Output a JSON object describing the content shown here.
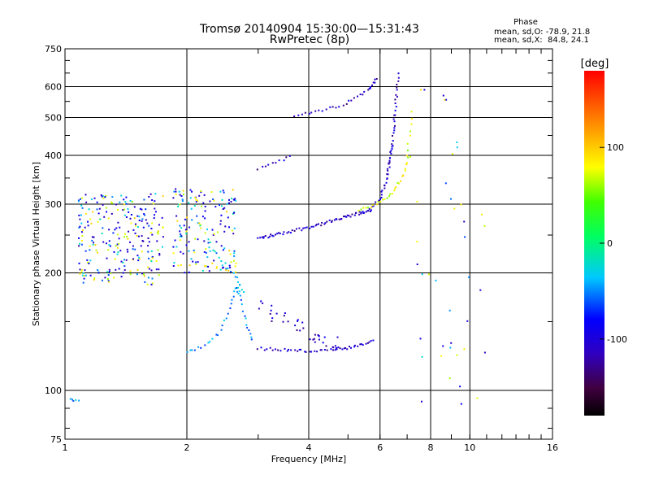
{
  "chart_data": {
    "type": "scatter",
    "title": "Tromsø 20140904 15:30:00—15:31:43",
    "subtitle": "RwPretec (8p)",
    "xlabel": "Frequency [MHz]",
    "ylabel": "Stationary phase Virtual Height [km]",
    "x_scale": "log",
    "y_scale": "log",
    "xlim": [
      1,
      16
    ],
    "ylim": [
      75,
      750
    ],
    "grid": true,
    "x_ticks": [
      {
        "v": 1,
        "label": "1"
      },
      {
        "v": 2,
        "label": "2"
      },
      {
        "v": 4,
        "label": "4"
      },
      {
        "v": 6,
        "label": "6"
      },
      {
        "v": 8,
        "label": "8"
      },
      {
        "v": 10,
        "label": "10"
      },
      {
        "v": 16,
        "label": "16"
      }
    ],
    "y_ticks": [
      {
        "v": 75,
        "label": "75"
      },
      {
        "v": 100,
        "label": "100"
      },
      {
        "v": 200,
        "label": "200"
      },
      {
        "v": 300,
        "label": "300"
      },
      {
        "v": 400,
        "label": "400"
      },
      {
        "v": 500,
        "label": "500"
      },
      {
        "v": 600,
        "label": "600"
      },
      {
        "v": 750,
        "label": "750"
      }
    ],
    "x_gridlines": [
      2,
      4,
      6,
      8,
      10
    ],
    "y_gridlines": [
      100,
      200,
      300,
      400,
      500,
      600
    ],
    "phase_stats": {
      "heading": "Phase",
      "line_o": "mean, sd,O: -78.9, 21.8",
      "line_x": "mean, sd,X:  84.8, 24.1"
    },
    "colorbar": {
      "label": "[deg]",
      "range": [
        -180,
        180
      ],
      "ticks": [
        {
          "v": 100,
          "label": "100"
        },
        {
          "v": 0,
          "label": "0"
        },
        {
          "v": -100,
          "label": "-100"
        }
      ]
    },
    "series": [
      {
        "phase_deg": -110,
        "traces": [
          {
            "xs": [
              3.0,
              3.4,
              4.0,
              4.6,
              5.2,
              5.7
            ],
            "ys": [
              245,
              252,
              262,
              272,
              282,
              290
            ],
            "n": 70
          },
          {
            "xs": [
              5.7,
              6.0,
              6.15,
              6.25,
              6.32
            ],
            "ys": [
              290,
              310,
              330,
              355,
              380
            ],
            "n": 22
          },
          {
            "xs": [
              6.3,
              6.45,
              6.55,
              6.65
            ],
            "ys": [
              380,
              430,
              520,
              650
            ],
            "n": 34
          },
          {
            "xs": [
              3.0,
              3.3,
              3.6
            ],
            "ys": [
              370,
              385,
              395
            ],
            "n": 10
          },
          {
            "xs": [
              3.7,
              4.3,
              5.0,
              5.6,
              5.9
            ],
            "ys": [
              505,
              520,
              545,
              590,
              630
            ],
            "n": 32
          },
          {
            "xs": [
              3.0,
              3.5,
              4.0,
              4.6,
              5.2,
              5.8
            ],
            "ys": [
              128,
              127,
              126,
              127,
              129,
              134
            ],
            "n": 48
          },
          {
            "xs": [
              3.0,
              4.0,
              4.8
            ],
            "ys": [
              165,
              140,
              132
            ],
            "n": 40,
            "jitter": 0.06
          }
        ]
      },
      {
        "phase_deg": -45,
        "traces": [
          {
            "xs": [
              2.0,
              2.2,
              2.4,
              2.55,
              2.65,
              2.7,
              2.8,
              2.9
            ],
            "ys": [
              125,
              130,
              140,
              160,
              185,
              175,
              150,
              135
            ],
            "n": 40
          },
          {
            "xs": [
              2.25,
              2.45,
              2.65,
              2.75
            ],
            "ys": [
              240,
              210,
              195,
              180
            ],
            "n": 18
          },
          {
            "xs": [
              1.03,
              1.08
            ],
            "ys": [
              95,
              94
            ],
            "n": 5
          }
        ]
      },
      {
        "phase_deg": 75,
        "traces": [
          {
            "xs": [
              5.3,
              5.9,
              6.4,
              6.8,
              7.1
            ],
            "ys": [
              288,
              300,
              318,
              350,
              400
            ],
            "n": 30
          },
          {
            "xs": [
              7.0,
              7.2
            ],
            "ys": [
              400,
              520
            ],
            "n": 8
          }
        ]
      },
      {
        "phase_deg": 30,
        "clouds": [
          {
            "x": [
              1.08,
              1.75
            ],
            "y": [
              185,
              320
            ],
            "n": 260
          },
          {
            "x": [
              1.85,
              2.65
            ],
            "y": [
              200,
              330
            ],
            "n": 170
          },
          {
            "x": [
              7.4,
              11.0
            ],
            "y": [
              90,
              620
            ],
            "n": 40
          }
        ]
      }
    ]
  }
}
